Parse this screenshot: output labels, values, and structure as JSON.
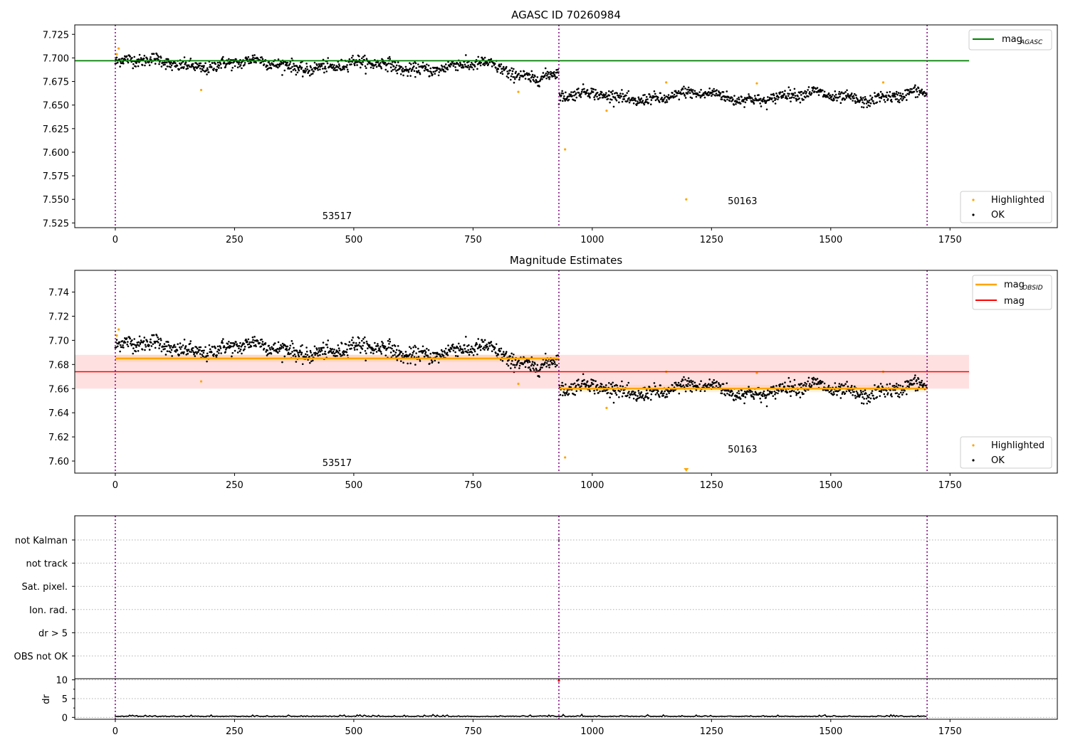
{
  "chart_data": [
    {
      "type": "scatter",
      "title": "AGASC ID 70260984",
      "xlim": [
        -85,
        1975
      ],
      "ylim": [
        7.52,
        7.735
      ],
      "x_ticks": [
        "0",
        "250",
        "500",
        "750",
        "1000",
        "1250",
        "1500",
        "1750"
      ],
      "y_ticks": [
        "7.525",
        "7.550",
        "7.575",
        "7.600",
        "7.625",
        "7.650",
        "7.675",
        "7.700",
        "7.725"
      ],
      "obsid_boundaries": [
        0,
        930,
        1702
      ],
      "obsid_labels": [
        {
          "text": "53517",
          "x": 465,
          "y": 7.529
        },
        {
          "text": "50163",
          "x": 1315,
          "y": 7.545
        }
      ],
      "reference_lines": [
        {
          "name": "mag_AGASC",
          "y": 7.697,
          "x_range": [
            -85,
            1790
          ],
          "color": "#008000"
        }
      ],
      "segments": [
        {
          "x_range": [
            0,
            930
          ],
          "mean": 7.688,
          "spread": 0.006
        },
        {
          "x_range": [
            930,
            1702
          ],
          "mean": 7.659,
          "spread": 0.0055
        }
      ],
      "highlighted_points": [
        {
          "x": 3,
          "y": 7.704
        },
        {
          "x": 7,
          "y": 7.71
        },
        {
          "x": 180,
          "y": 7.666
        },
        {
          "x": 845,
          "y": 7.664
        },
        {
          "x": 943,
          "y": 7.603
        },
        {
          "x": 1030,
          "y": 7.644
        },
        {
          "x": 1155,
          "y": 7.674
        },
        {
          "x": 1197,
          "y": 7.55
        },
        {
          "x": 1345,
          "y": 7.673
        },
        {
          "x": 1610,
          "y": 7.674
        }
      ],
      "legend_upper": [
        {
          "label": "mag",
          "sub": "AGASC",
          "color": "#008000"
        }
      ],
      "legend_lower": [
        {
          "label": "Highlighted",
          "color": "#ffa500"
        },
        {
          "label": "OK",
          "color": "#000000"
        }
      ]
    },
    {
      "type": "scatter",
      "title": "Magnitude Estimates",
      "xlim": [
        -85,
        1975
      ],
      "ylim": [
        7.59,
        7.758
      ],
      "x_ticks": [
        "0",
        "250",
        "500",
        "750",
        "1000",
        "1250",
        "1500",
        "1750"
      ],
      "y_ticks": [
        "7.60",
        "7.62",
        "7.64",
        "7.66",
        "7.68",
        "7.70",
        "7.72",
        "7.74"
      ],
      "obsid_boundaries": [
        0,
        930,
        1702
      ],
      "obsid_labels": [
        {
          "text": "53517",
          "x": 465,
          "y": 7.596
        },
        {
          "text": "50163",
          "x": 1315,
          "y": 7.607
        }
      ],
      "mean_band": {
        "y": 7.674,
        "low": 7.66,
        "high": 7.688,
        "x_range": [
          -85,
          1790
        ],
        "color": "#ff0000"
      },
      "obsid_means": [
        {
          "x_range": [
            0,
            930
          ],
          "y": 7.685
        },
        {
          "x_range": [
            930,
            1702
          ],
          "y": 7.66
        }
      ],
      "highlighted_points": [
        {
          "x": 3,
          "y": 7.704
        },
        {
          "x": 7,
          "y": 7.709
        },
        {
          "x": 180,
          "y": 7.666
        },
        {
          "x": 845,
          "y": 7.664
        },
        {
          "x": 943,
          "y": 7.603
        },
        {
          "x": 1030,
          "y": 7.644
        },
        {
          "x": 1155,
          "y": 7.674
        },
        {
          "x": 1345,
          "y": 7.673
        },
        {
          "x": 1610,
          "y": 7.674
        }
      ],
      "out_of_range_markers": [
        {
          "x": 1197
        }
      ],
      "legend_upper": [
        {
          "label": "mag",
          "sub": "OBSID",
          "color": "#ffa500"
        },
        {
          "label": "mag",
          "sub": "",
          "color": "#ff0000"
        }
      ],
      "legend_lower": [
        {
          "label": "Highlighted",
          "color": "#ffa500"
        },
        {
          "label": "OK",
          "color": "#000000"
        }
      ]
    },
    {
      "type": "scatter",
      "title": "",
      "xlim": [
        -85,
        1975
      ],
      "flag_rows": [
        "not Kalman",
        "not track",
        "Sat. pixel.",
        "Ion. rad.",
        "dr > 5",
        "OBS not OK"
      ],
      "flag_points": [
        {
          "row": "not Kalman",
          "x": 930
        }
      ]
    },
    {
      "type": "line",
      "title": "",
      "ylabel": "dr",
      "xlim": [
        -85,
        1975
      ],
      "ylim": [
        -0.5,
        10.3
      ],
      "x_ticks": [
        "0",
        "250",
        "500",
        "750",
        "1000",
        "1250",
        "1500",
        "1750"
      ],
      "y_ticks": [
        "0",
        "5",
        "10"
      ],
      "baseline": 0.2,
      "outliers": [
        {
          "x": 930,
          "y": 9.8
        }
      ],
      "obsid_boundaries": [
        0,
        930,
        1702
      ]
    }
  ]
}
